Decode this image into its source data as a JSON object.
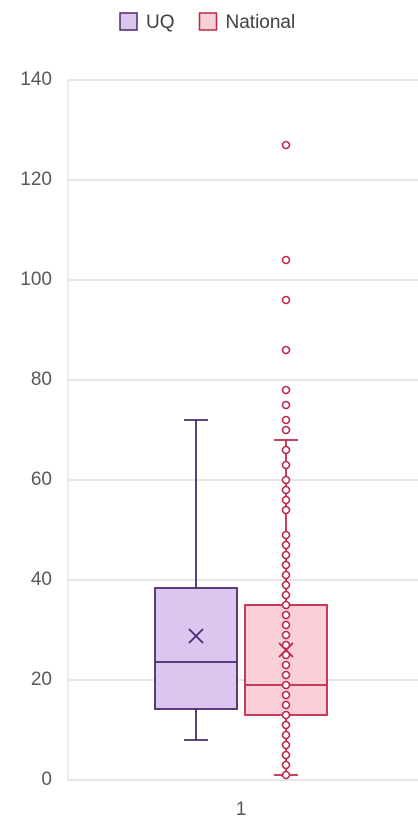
{
  "chart_data": {
    "type": "box",
    "categories": [
      "1"
    ],
    "ylim": [
      0,
      140
    ],
    "yticks": [
      0,
      20,
      40,
      60,
      80,
      100,
      120,
      140
    ],
    "grid": true,
    "legend": "top",
    "series": [
      {
        "name": "UQ",
        "color": "#4b2a6e",
        "fill": "#dcc6f0",
        "min": 8,
        "q1": 14.2,
        "median": 23.6,
        "q3": 38.4,
        "max": 72,
        "mean": 28.8,
        "points": []
      },
      {
        "name": "National",
        "color": "#c0284a",
        "fill": "#f9d0d8",
        "min": 1,
        "q1": 13,
        "median": 19,
        "q3": 35,
        "max": 68,
        "mean": 26,
        "points": [
          127,
          104,
          96,
          86,
          78,
          75,
          72,
          70,
          66,
          63,
          60,
          58,
          56,
          54,
          49,
          47,
          45,
          43,
          41,
          39,
          37,
          35,
          33,
          31,
          29,
          27,
          25,
          23,
          21,
          19,
          17,
          15,
          13,
          11,
          9,
          7,
          5,
          3,
          1
        ]
      }
    ]
  }
}
